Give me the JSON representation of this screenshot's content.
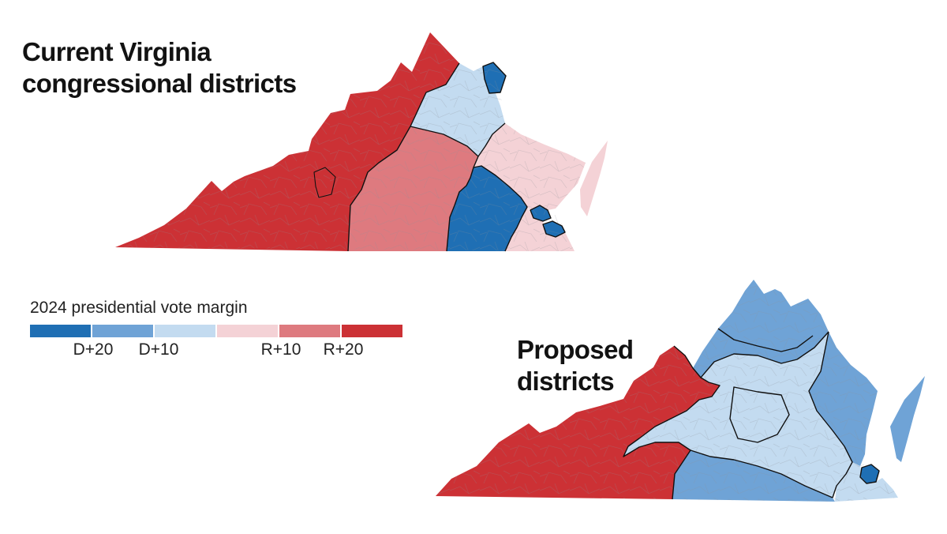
{
  "titles": {
    "current": [
      "Current Virginia",
      "congressional districts"
    ],
    "proposed": [
      "Proposed",
      "districts"
    ]
  },
  "legend": {
    "title": "2024 presidential vote margin",
    "swatches": [
      {
        "label": "D+20 or more",
        "color": "#1f6fb4"
      },
      {
        "label": "D+10 to D+20",
        "color": "#6fa3d6"
      },
      {
        "label": "D+0 to D+10",
        "color": "#c3dbf0"
      },
      {
        "label": "R+0 to R+10",
        "color": "#f4d2d6"
      },
      {
        "label": "R+10 to R+20",
        "color": "#de7a7f"
      },
      {
        "label": "R+20 or more",
        "color": "#cc3135"
      }
    ],
    "ticks": [
      "D+20",
      "D+10",
      "R+10",
      "R+20"
    ]
  },
  "colors": {
    "border": "#111111",
    "roads": "#8a8f96"
  },
  "maps": [
    {
      "name": "current",
      "districts": [
        {
          "id": "west-r20",
          "margin": "R+20 or more"
        },
        {
          "id": "southside-r15",
          "margin": "R+10 to R+20"
        },
        {
          "id": "richmond-d20",
          "margin": "D+20 or more"
        },
        {
          "id": "northern-d5",
          "margin": "D+0 to D+10"
        },
        {
          "id": "arlington-d20",
          "margin": "D+20 or more"
        },
        {
          "id": "eastern-r5",
          "margin": "R+0 to R+10"
        },
        {
          "id": "norfolk-d20",
          "margin": "D+20 or more"
        }
      ]
    },
    {
      "name": "proposed",
      "districts": [
        {
          "id": "west-r20",
          "margin": "R+20 or more"
        },
        {
          "id": "north-d15",
          "margin": "D+10 to D+20"
        },
        {
          "id": "central-d5",
          "margin": "D+0 to D+10"
        },
        {
          "id": "south-d15",
          "margin": "D+10 to D+20"
        },
        {
          "id": "east-d15",
          "margin": "D+10 to D+20"
        },
        {
          "id": "norfolk-d20",
          "margin": "D+20 or more"
        }
      ]
    }
  ]
}
